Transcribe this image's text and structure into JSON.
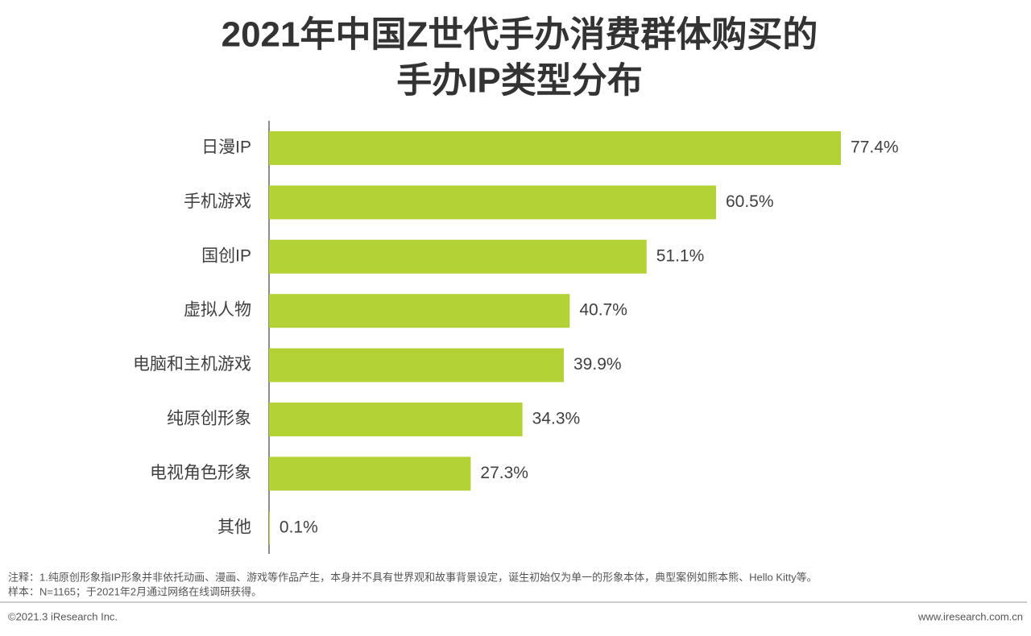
{
  "chart_data": {
    "type": "bar",
    "orientation": "horizontal",
    "title": [
      "2021年中国Z世代手办消费群体购买的",
      "手办IP类型分布"
    ],
    "categories": [
      "日漫IP",
      "手机游戏",
      "国创IP",
      "虚拟人物",
      "电脑和主机游戏",
      "纯原创形象",
      "电视角色形象",
      "其他"
    ],
    "values": [
      77.4,
      60.5,
      51.1,
      40.7,
      39.9,
      34.3,
      27.3,
      0.1
    ],
    "value_labels": [
      "77.4%",
      "60.5%",
      "51.1%",
      "40.7%",
      "39.9%",
      "34.3%",
      "27.3%",
      "0.1%"
    ],
    "color": "#b2d235",
    "notes": [
      "注释：1.纯原创形象指IP形象并非依托动画、漫画、游戏等作品产生，本身并不具有世界观和故事背景设定，诞生初始仅为单一的形象本体，典型案例如熊本熊、Hello Kitty等。",
      "样本：N=1165；于2021年2月通过网络在线调研获得。"
    ],
    "copyright": "©2021.3 iResearch Inc.",
    "website": "www.iresearch.com.cn"
  }
}
